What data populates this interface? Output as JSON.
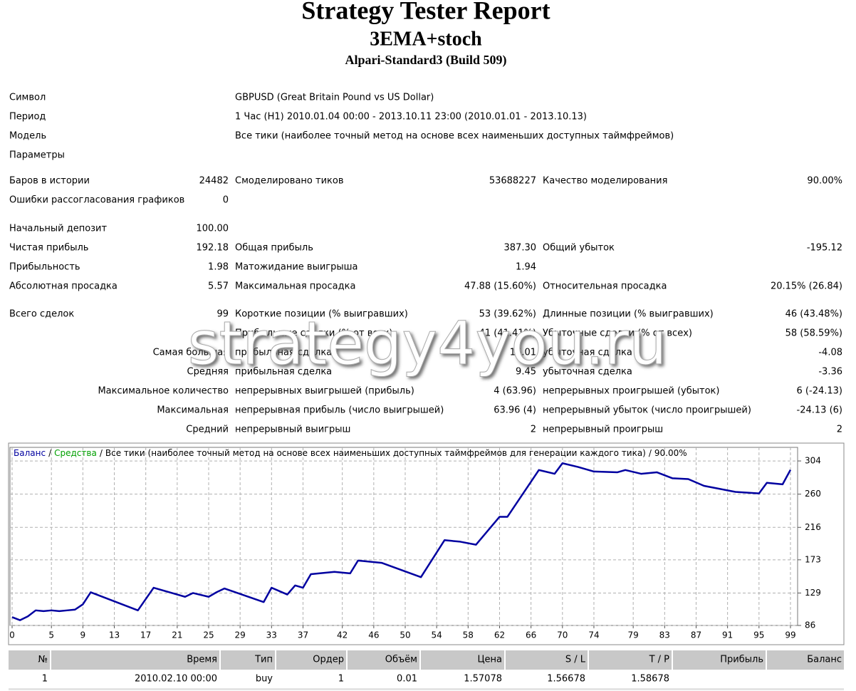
{
  "header": {
    "title": "Strategy Tester Report",
    "subtitle": "3EMA+stoch",
    "server": "Alpari-Standard3 (Build 509)"
  },
  "info": [
    {
      "label": "Символ",
      "value": "GBPUSD (Great Britain Pound vs US Dollar)"
    },
    {
      "label": "Период",
      "value": "1 Час (H1) 2010.01.04 00:00 - 2013.10.11 23:00 (2010.01.01 - 2013.10.13)"
    },
    {
      "label": "Модель",
      "value": "Все тики (наиболее точный метод на основе всех наименьших доступных таймфреймов)"
    },
    {
      "label": "Параметры"
    }
  ],
  "stats": [
    {
      "c1": {
        "label": "Баров в истории",
        "value": "24482"
      },
      "c2": {
        "label": "Смоделировано тиков",
        "value": "53688227"
      },
      "c3": {
        "label": "Качество моделирования",
        "value": "90.00%"
      }
    },
    {
      "c1": {
        "label": "Ошибки рассогласования графиков",
        "value": "0"
      }
    },
    {
      "c1": {
        "label": "Начальный депозит",
        "value": "100.00"
      }
    },
    {
      "c1": {
        "label": "Чистая прибыль",
        "value": "192.18"
      },
      "c2": {
        "label": "Общая прибыль",
        "value": "387.30"
      },
      "c3": {
        "label": "Общий убыток",
        "value": "-195.12"
      }
    },
    {
      "c1": {
        "label": "Прибыльность",
        "value": "1.98"
      },
      "c2": {
        "label": "Матожидание выигрыша",
        "value": "1.94"
      }
    },
    {
      "c1": {
        "label": "Абсолютная просадка",
        "value": "5.57"
      },
      "c2": {
        "label": "Максимальная просадка",
        "value": "47.88 (15.60%)"
      },
      "c3": {
        "label": "Относительная просадка",
        "value": "20.15% (26.84)"
      }
    },
    {
      "c1": {
        "label": "Всего сделок",
        "value": "99"
      },
      "c2": {
        "label": "Короткие позиции (% выигравших)",
        "value": "53 (39.62%)"
      },
      "c3": {
        "label": "Длинные позиции (% выигравших)",
        "value": "46 (43.48%)"
      }
    },
    {
      "c2": {
        "label": "Прибыльные сделки (% от всех)",
        "value": "41 (41.41%)"
      },
      "c3": {
        "label": "Убыточные сделки (% от всех)",
        "value": "58 (58.59%)"
      }
    },
    {
      "c1": {
        "label": "Самая большая"
      },
      "c2": {
        "label": "прибыльная сделка",
        "value": "16.01"
      },
      "c3": {
        "label": "убыточная сделка",
        "value": "-4.08"
      }
    },
    {
      "c1": {
        "label": "Средняя"
      },
      "c2": {
        "label": "прибыльная сделка",
        "value": "9.45"
      },
      "c3": {
        "label": "убыточная сделка",
        "value": "-3.36"
      }
    },
    {
      "c1": {
        "label": "Максимальное количество"
      },
      "c2": {
        "label": "непрерывных выигрышей (прибыль)",
        "value": "4 (63.96)"
      },
      "c3": {
        "label": "непрерывных проигрышей (убыток)",
        "value": "6 (-24.13)"
      }
    },
    {
      "c1": {
        "label": "Максимальная"
      },
      "c2": {
        "label": "непрерывная прибыль (число выигрышей)",
        "value": "63.96 (4)"
      },
      "c3": {
        "label": "непрерывный убыток (число проигрышей)",
        "value": "-24.13 (6)"
      }
    },
    {
      "c1": {
        "label": "Средний"
      },
      "c2": {
        "label": "непрерывный выигрыш",
        "value": "2"
      },
      "c3": {
        "label": "непрерывный проигрыш",
        "value": "2"
      }
    }
  ],
  "watermark": "strategy4you.ru",
  "chart_data": {
    "type": "line",
    "separator": "/",
    "equity_label": "Средства",
    "equity_color": "#00a000",
    "subtitle": "Все тики (наиболее точный метод на основе всех наименьших доступных таймфреймов для генерации каждого тика)",
    "quality": "90.00%",
    "x": [
      0,
      1,
      2,
      3,
      4,
      5,
      6,
      7,
      8,
      9,
      10,
      16,
      18,
      22,
      23,
      25,
      26,
      27,
      32,
      33,
      35,
      36,
      37,
      38,
      41,
      43,
      44,
      47,
      52,
      55,
      57,
      59,
      62,
      63,
      67,
      69,
      70,
      72,
      74,
      77,
      78,
      80,
      82,
      84,
      86,
      88,
      90,
      92,
      95,
      96,
      98,
      99
    ],
    "series": [
      {
        "name": "Баланс",
        "color": "#0000a0",
        "values": [
          97,
          93,
          98,
          106,
          105,
          106,
          105,
          106,
          107,
          114,
          130,
          106,
          136,
          124,
          129,
          124,
          130,
          135,
          117,
          136,
          127,
          139,
          136,
          154,
          157,
          155,
          172,
          169,
          150,
          199,
          197,
          193,
          230,
          230,
          292,
          287,
          301,
          296,
          290,
          289,
          292,
          287,
          289,
          281,
          280,
          271,
          267,
          263,
          261,
          275,
          273,
          292.18
        ]
      }
    ],
    "xlim": [
      0,
      100
    ],
    "xticks": [
      0,
      5,
      9,
      13,
      17,
      21,
      25,
      29,
      33,
      37,
      42,
      46,
      50,
      54,
      58,
      62,
      66,
      70,
      74,
      79,
      83,
      87,
      91,
      95,
      99
    ],
    "ylim": [
      86,
      322
    ],
    "yticks": [
      86,
      129,
      173,
      216,
      260,
      304
    ],
    "grid": true
  },
  "table": {
    "columns": [
      "№",
      "Время",
      "Тип",
      "Ордер",
      "Объём",
      "Цена",
      "S / L",
      "T / P",
      "Прибыль",
      "Баланс"
    ],
    "rows": [
      [
        "1",
        "2010.02.10 00:00",
        "buy",
        "1",
        "0.01",
        "1.57078",
        "1.56678",
        "1.58678"
      ]
    ]
  }
}
